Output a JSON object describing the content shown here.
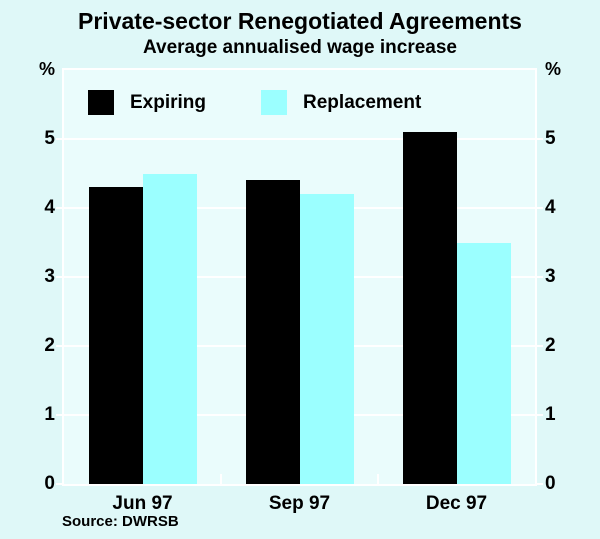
{
  "page": {
    "background": "#DFF8F8"
  },
  "header": {
    "title": "Private-sector Renegotiated Agreements",
    "subtitle": "Average annualised wage increase"
  },
  "axes": {
    "unit_label_left": "%",
    "unit_label_right": "%"
  },
  "source": {
    "label": "Source: DWRSB"
  },
  "chart_data": {
    "type": "bar",
    "title": "Private-sector Renegotiated Agreements",
    "subtitle": "Average annualised wage increase",
    "categories": [
      "Jun 97",
      "Sep 97",
      "Dec 97"
    ],
    "series": [
      {
        "name": "Expiring",
        "color": "#000000",
        "values": [
          4.3,
          4.4,
          5.1
        ]
      },
      {
        "name": "Replacement",
        "color": "#9BFFFF",
        "values": [
          4.5,
          4.2,
          3.5
        ]
      }
    ],
    "ylabel": "%",
    "ylim": [
      0,
      6
    ],
    "yticks": [
      0,
      1,
      2,
      3,
      4,
      5
    ],
    "grid": "horizontal",
    "gridline_color": "#FFFFFF",
    "plot_background": "#EAFCFC",
    "frame_color": "#FFFFFF",
    "legend_position": "top-left-inside"
  }
}
